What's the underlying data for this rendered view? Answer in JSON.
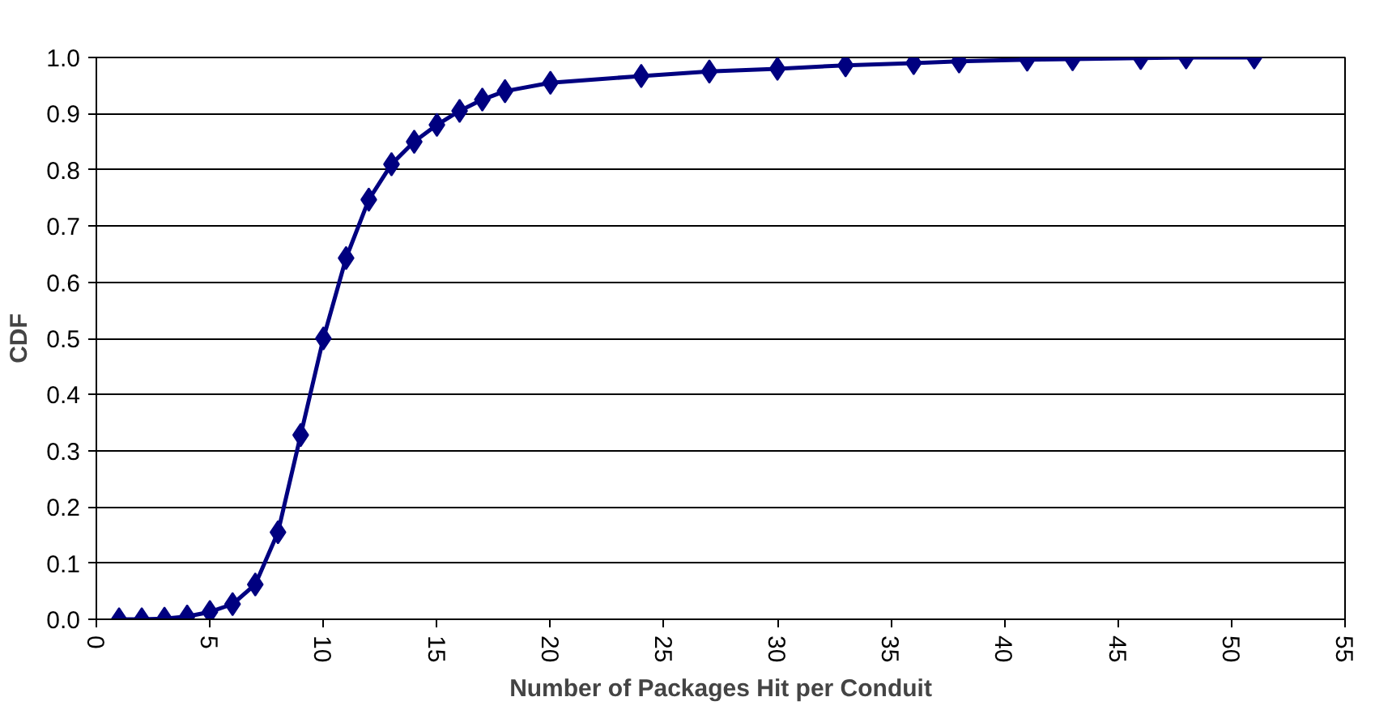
{
  "chart_data": {
    "type": "line",
    "xlabel": "Number of Packages Hit per Conduit",
    "ylabel": "CDF",
    "x": [
      1,
      2,
      3,
      4,
      5,
      6,
      7,
      8,
      9,
      10,
      11,
      12,
      13,
      14,
      15,
      16,
      17,
      18,
      20,
      24,
      27,
      30,
      33,
      36,
      38,
      41,
      43,
      46,
      48,
      51
    ],
    "series": [
      {
        "color": "#000080",
        "values": [
          0.0,
          0.0,
          0.001,
          0.005,
          0.013,
          0.027,
          0.062,
          0.155,
          0.328,
          0.5,
          0.643,
          0.747,
          0.81,
          0.85,
          0.88,
          0.905,
          0.925,
          0.94,
          0.955,
          0.967,
          0.975,
          0.98,
          0.986,
          0.99,
          0.993,
          0.996,
          0.997,
          0.999,
          1.0,
          1.0
        ]
      }
    ],
    "xlim": [
      0,
      55
    ],
    "xticks": [
      0,
      5,
      10,
      15,
      20,
      25,
      30,
      35,
      40,
      45,
      50,
      55
    ],
    "ylim": [
      0,
      1
    ],
    "yticks": [
      {
        "value": 0,
        "label": "0.0"
      },
      {
        "value": 0.1,
        "label": "0.1"
      },
      {
        "value": 0.2,
        "label": "0.2"
      },
      {
        "value": 0.3,
        "label": "0.3"
      },
      {
        "value": 0.4,
        "label": "0.4"
      },
      {
        "value": 0.5,
        "label": "0.5"
      },
      {
        "value": 0.6,
        "label": "0.6"
      },
      {
        "value": 0.7,
        "label": "0.7"
      },
      {
        "value": 0.8,
        "label": "0.8"
      },
      {
        "value": 0.9,
        "label": "0.9"
      },
      {
        "value": 1,
        "label": "1.0"
      }
    ],
    "grid": "y",
    "marker": "diamond",
    "line_style": "solid"
  }
}
